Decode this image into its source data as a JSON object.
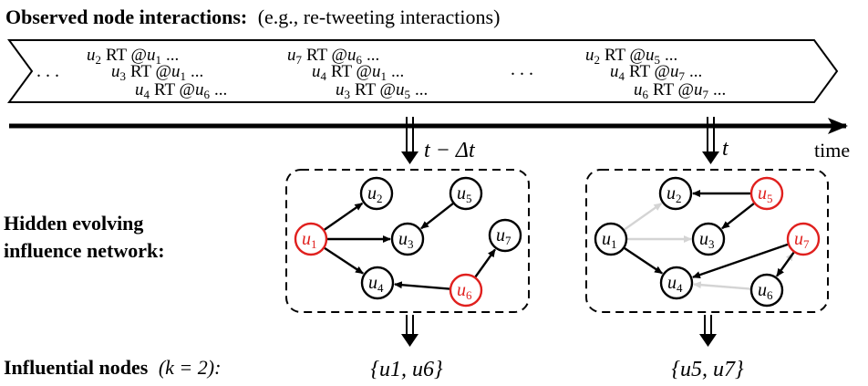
{
  "header": {
    "title_bold": "Observed node interactions:",
    "title_rest": "(e.g., re-tweeting interactions)"
  },
  "stream": {
    "ellipsis_left": ". . .",
    "ellipsis_mid": ". . .",
    "group1": [
      {
        "u": "u",
        "sub": "2",
        "rt": "RT @",
        "v": "u",
        "vsub": "1",
        "tail": "..."
      },
      {
        "u": "u",
        "sub": "3",
        "rt": "RT @",
        "v": "u",
        "vsub": "1",
        "tail": "..."
      },
      {
        "u": "u",
        "sub": "4",
        "rt": "RT @",
        "v": "u",
        "vsub": "6",
        "tail": "..."
      }
    ],
    "group2": [
      {
        "u": "u",
        "sub": "7",
        "rt": "RT @",
        "v": "u",
        "vsub": "6",
        "tail": "..."
      },
      {
        "u": "u",
        "sub": "4",
        "rt": "RT @",
        "v": "u",
        "vsub": "1",
        "tail": "..."
      },
      {
        "u": "u",
        "sub": "3",
        "rt": "RT @",
        "v": "u",
        "vsub": "5",
        "tail": "..."
      }
    ],
    "group3": [
      {
        "u": "u",
        "sub": "2",
        "rt": "RT @",
        "v": "u",
        "vsub": "5",
        "tail": "..."
      },
      {
        "u": "u",
        "sub": "4",
        "rt": "RT @",
        "v": "u",
        "vsub": "7",
        "tail": "..."
      },
      {
        "u": "u",
        "sub": "6",
        "rt": "RT @",
        "v": "u",
        "vsub": "7",
        "tail": "..."
      }
    ]
  },
  "timeline": {
    "axis_label": "time",
    "t1_label": "t − Δt",
    "t2_label": "t"
  },
  "left_labels": {
    "network_line1": "Hidden evolving",
    "network_line2": "influence network:",
    "influential_bold": "Influential nodes",
    "influential_k": "(k = 2):"
  },
  "network1": {
    "nodes": [
      {
        "id": "u1",
        "base": "u",
        "sub": "1",
        "influential": true
      },
      {
        "id": "u2",
        "base": "u",
        "sub": "2",
        "influential": false
      },
      {
        "id": "u3",
        "base": "u",
        "sub": "3",
        "influential": false
      },
      {
        "id": "u4",
        "base": "u",
        "sub": "4",
        "influential": false
      },
      {
        "id": "u5",
        "base": "u",
        "sub": "5",
        "influential": false
      },
      {
        "id": "u6",
        "base": "u",
        "sub": "6",
        "influential": true
      },
      {
        "id": "u7",
        "base": "u",
        "sub": "7",
        "influential": false
      }
    ],
    "edges": [
      {
        "from": "u1",
        "to": "u2",
        "faded": false
      },
      {
        "from": "u1",
        "to": "u3",
        "faded": false
      },
      {
        "from": "u1",
        "to": "u4",
        "faded": false
      },
      {
        "from": "u5",
        "to": "u3",
        "faded": false
      },
      {
        "from": "u6",
        "to": "u4",
        "faded": false
      },
      {
        "from": "u6",
        "to": "u7",
        "faded": false
      }
    ],
    "result": "{u1, u6}"
  },
  "network2": {
    "nodes": [
      {
        "id": "u1",
        "base": "u",
        "sub": "1",
        "influential": false
      },
      {
        "id": "u2",
        "base": "u",
        "sub": "2",
        "influential": false
      },
      {
        "id": "u3",
        "base": "u",
        "sub": "3",
        "influential": false
      },
      {
        "id": "u4",
        "base": "u",
        "sub": "4",
        "influential": false
      },
      {
        "id": "u5",
        "base": "u",
        "sub": "5",
        "influential": true
      },
      {
        "id": "u6",
        "base": "u",
        "sub": "6",
        "influential": false
      },
      {
        "id": "u7",
        "base": "u",
        "sub": "7",
        "influential": true
      }
    ],
    "edges": [
      {
        "from": "u5",
        "to": "u2",
        "faded": false
      },
      {
        "from": "u5",
        "to": "u3",
        "faded": false
      },
      {
        "from": "u1",
        "to": "u2",
        "faded": true
      },
      {
        "from": "u1",
        "to": "u3",
        "faded": true
      },
      {
        "from": "u1",
        "to": "u4",
        "faded": false
      },
      {
        "from": "u7",
        "to": "u4",
        "faded": false
      },
      {
        "from": "u7",
        "to": "u6",
        "faded": false
      },
      {
        "from": "u6",
        "to": "u4",
        "faded": true
      },
      {
        "from": "u6",
        "to": "u7",
        "faded": true
      }
    ],
    "result": "{u5, u7}"
  },
  "colors": {
    "influential": "#e0201e",
    "edge": "#000000",
    "faded_edge": "#d4d4d4"
  }
}
